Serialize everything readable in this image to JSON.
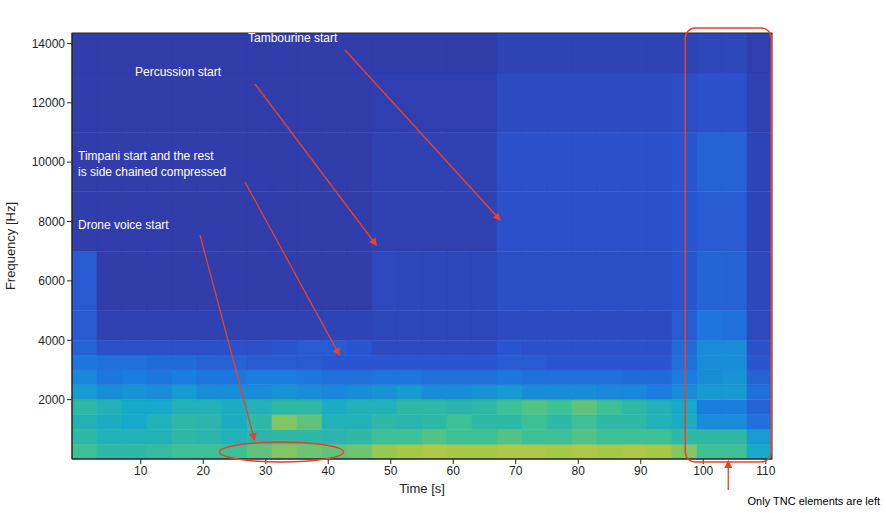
{
  "chart_data": {
    "type": "heatmap",
    "xlabel": "Time [s]",
    "ylabel": "Frequency [Hz]",
    "xlim": [
      -1,
      111
    ],
    "ylim": [
      0,
      14350
    ],
    "xticks": [
      10,
      20,
      30,
      40,
      50,
      60,
      70,
      80,
      90,
      100,
      110
    ],
    "yticks": [
      2000,
      4000,
      6000,
      8000,
      10000,
      12000,
      14000
    ],
    "time_bins": [
      -1,
      3,
      7,
      11,
      15,
      19,
      23,
      27,
      31,
      35,
      39,
      43,
      47,
      51,
      55,
      59,
      63,
      67,
      71,
      75,
      79,
      83,
      87,
      91,
      95,
      99,
      103,
      107,
      111
    ],
    "freq_bins": [
      0,
      500,
      1000,
      1500,
      2000,
      2500,
      3000,
      3500,
      4000,
      5000,
      7000,
      9000,
      11000,
      13000,
      14350
    ],
    "cells": [
      [
        0.55,
        0.5,
        0.5,
        0.52,
        0.55,
        0.55,
        0.55,
        0.6,
        0.65,
        0.62,
        0.6,
        0.62,
        0.68,
        0.7,
        0.72,
        0.7,
        0.7,
        0.72,
        0.72,
        0.7,
        0.72,
        0.7,
        0.72,
        0.7,
        0.65,
        0.55,
        0.55,
        0.4
      ],
      [
        0.5,
        0.45,
        0.45,
        0.45,
        0.5,
        0.48,
        0.45,
        0.48,
        0.5,
        0.5,
        0.48,
        0.5,
        0.55,
        0.55,
        0.58,
        0.55,
        0.55,
        0.58,
        0.55,
        0.55,
        0.58,
        0.55,
        0.55,
        0.55,
        0.5,
        0.5,
        0.5,
        0.35
      ],
      [
        0.45,
        0.42,
        0.4,
        0.45,
        0.5,
        0.48,
        0.42,
        0.5,
        0.65,
        0.6,
        0.45,
        0.45,
        0.5,
        0.48,
        0.5,
        0.55,
        0.5,
        0.5,
        0.55,
        0.5,
        0.55,
        0.5,
        0.5,
        0.45,
        0.42,
        0.3,
        0.3,
        0.2
      ],
      [
        0.5,
        0.45,
        0.4,
        0.4,
        0.45,
        0.45,
        0.42,
        0.45,
        0.5,
        0.5,
        0.42,
        0.45,
        0.45,
        0.5,
        0.5,
        0.48,
        0.5,
        0.55,
        0.58,
        0.55,
        0.6,
        0.55,
        0.5,
        0.45,
        0.4,
        0.25,
        0.25,
        0.15
      ],
      [
        0.35,
        0.3,
        0.32,
        0.3,
        0.35,
        0.3,
        0.3,
        0.3,
        0.32,
        0.3,
        0.28,
        0.3,
        0.32,
        0.35,
        0.3,
        0.3,
        0.32,
        0.35,
        0.3,
        0.3,
        0.3,
        0.28,
        0.28,
        0.25,
        0.3,
        0.35,
        0.35,
        0.2
      ],
      [
        0.28,
        0.22,
        0.25,
        0.22,
        0.25,
        0.22,
        0.22,
        0.25,
        0.25,
        0.22,
        0.2,
        0.2,
        0.22,
        0.22,
        0.2,
        0.2,
        0.2,
        0.22,
        0.2,
        0.2,
        0.2,
        0.2,
        0.18,
        0.18,
        0.25,
        0.3,
        0.32,
        0.15
      ],
      [
        0.22,
        0.2,
        0.2,
        0.18,
        0.18,
        0.15,
        0.15,
        0.12,
        0.12,
        0.12,
        0.1,
        0.1,
        0.1,
        0.1,
        0.1,
        0.1,
        0.1,
        0.12,
        0.12,
        0.1,
        0.1,
        0.1,
        0.1,
        0.1,
        0.2,
        0.3,
        0.3,
        0.1
      ],
      [
        0.15,
        0.08,
        0.08,
        0.08,
        0.08,
        0.08,
        0.08,
        0.08,
        0.1,
        0.12,
        0.12,
        0.1,
        0.06,
        0.06,
        0.06,
        0.06,
        0.06,
        0.1,
        0.08,
        0.08,
        0.08,
        0.08,
        0.08,
        0.08,
        0.18,
        0.3,
        0.3,
        0.08
      ],
      [
        0.12,
        0.02,
        0.02,
        0.02,
        0.02,
        0.02,
        0.02,
        0.02,
        0.02,
        0.02,
        0.03,
        0.03,
        0.04,
        0.04,
        0.04,
        0.04,
        0.04,
        0.06,
        0.06,
        0.06,
        0.06,
        0.06,
        0.06,
        0.06,
        0.12,
        0.22,
        0.2,
        0.05
      ],
      [
        0.12,
        0,
        0,
        0,
        0,
        0,
        0,
        0,
        0,
        0,
        0,
        0,
        0.05,
        0.04,
        0.04,
        0.04,
        0.04,
        0.07,
        0.07,
        0.07,
        0.07,
        0.07,
        0.07,
        0.07,
        0.1,
        0.16,
        0.15,
        0.04
      ],
      [
        0,
        0,
        0,
        0,
        0,
        0,
        0,
        0,
        0,
        0,
        0,
        0,
        0.02,
        0.02,
        0.02,
        0.02,
        0.02,
        0.08,
        0.08,
        0.08,
        0.08,
        0.08,
        0.08,
        0.08,
        0.1,
        0.12,
        0.12,
        0.03
      ],
      [
        0,
        0,
        0,
        0,
        0,
        0,
        0,
        0,
        0,
        0,
        0,
        0,
        0.02,
        0.02,
        0.02,
        0.02,
        0.02,
        0.08,
        0.08,
        0.08,
        0.08,
        0.08,
        0.08,
        0.08,
        0.1,
        0.15,
        0.15,
        0.03
      ],
      [
        0,
        0,
        0,
        0,
        0,
        0,
        0,
        0,
        0,
        0,
        0,
        0,
        0.01,
        0.01,
        0.01,
        0.01,
        0.01,
        0.06,
        0.06,
        0.06,
        0.06,
        0.06,
        0.06,
        0.06,
        0.07,
        0.08,
        0.08,
        0.02
      ],
      [
        0,
        0,
        0,
        0,
        0,
        0,
        0,
        0,
        0,
        0,
        0,
        0,
        0,
        0,
        0,
        0,
        0,
        0.03,
        0.03,
        0.03,
        0.03,
        0.03,
        0.03,
        0.03,
        0.03,
        0.04,
        0.04,
        0.01
      ]
    ],
    "annotations": [
      {
        "text": "Tambourine start",
        "x": 67.5,
        "y": 8050
      },
      {
        "text": "Percussion start",
        "x": 47.7,
        "y": 7200
      },
      {
        "text": "Timpani start and the rest is side chained compressed",
        "x": 41.8,
        "y": 3500
      },
      {
        "text": "Drone voice start",
        "x": 28.2,
        "y": 640
      },
      {
        "text": "Only TNC elements are left",
        "x": 104,
        "y": 0
      }
    ]
  }
}
